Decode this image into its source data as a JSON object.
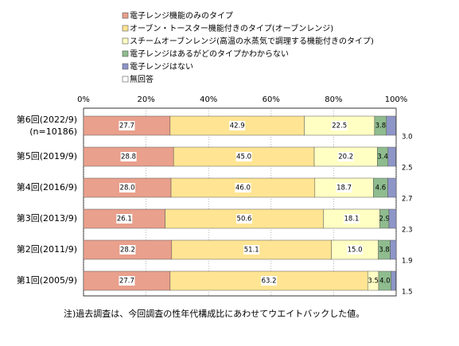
{
  "chart_data": {
    "type": "stacked_bar_horizontal",
    "categories": [
      "第6回(2022/9)",
      "第5回(2019/9)",
      "第4回(2016/9)",
      "第3回(2013/9)",
      "第2回(2011/9)",
      "第1回(2005/9)"
    ],
    "sample_size": "(n=10186)",
    "xlim": [
      0,
      100
    ],
    "xticks": [
      {
        "value": 0,
        "label": "0%"
      },
      {
        "value": 20,
        "label": "20%"
      },
      {
        "value": 40,
        "label": "40%"
      },
      {
        "value": 60,
        "label": "60%"
      },
      {
        "value": 80,
        "label": "80%"
      },
      {
        "value": 100,
        "label": "100%"
      }
    ],
    "grid": true,
    "series": [
      {
        "name": "電子レンジ機能のみのタイプ",
        "color": "#e9a08c",
        "values": [
          27.7,
          28.8,
          28.0,
          26.1,
          28.2,
          27.7
        ],
        "value_labels": [
          "27.7",
          "28.8",
          "28.0",
          "26.1",
          "28.2",
          "27.7"
        ]
      },
      {
        "name": "オーブン・トースター機能付きのタイプ(オーブンレンジ)",
        "color": "#ffe593",
        "values": [
          42.9,
          45.0,
          46.0,
          50.6,
          51.1,
          63.2
        ],
        "value_labels": [
          "42.9",
          "45.0",
          "46.0",
          "50.6",
          "51.1",
          "63.2"
        ]
      },
      {
        "name": "スチームオーブンレンジ(高温の水蒸気で調理する機能付きのタイプ)",
        "color": "#ffffc4",
        "values": [
          22.5,
          20.2,
          18.7,
          18.1,
          15.0,
          3.5
        ],
        "value_labels": [
          "22.5",
          "20.2",
          "18.7",
          "18.1",
          "15.0",
          "3.5"
        ]
      },
      {
        "name": "電子レンジはあるがどのタイプかわからない",
        "color": "#8fbc8f",
        "values": [
          3.8,
          3.4,
          4.6,
          2.9,
          3.8,
          4.0
        ],
        "value_labels": [
          "3.8",
          "3.4",
          "4.6",
          "2.9",
          "3.8",
          "4.0"
        ]
      },
      {
        "name": "電子レンジはない",
        "color": "#8e96c8",
        "values": [
          3.0,
          2.5,
          2.7,
          2.3,
          1.9,
          1.5
        ],
        "value_labels": [
          "3.0",
          "2.5",
          "2.7",
          "2.3",
          "1.9",
          "1.5"
        ]
      },
      {
        "name": "無回答",
        "color": "#ffffff",
        "values": [
          0.1,
          0.1,
          0,
          0,
          0,
          0.1
        ]
      }
    ],
    "note": "注)過去調査は、今回調査の性年代構成比にあわせてウエイトバックした値。"
  }
}
